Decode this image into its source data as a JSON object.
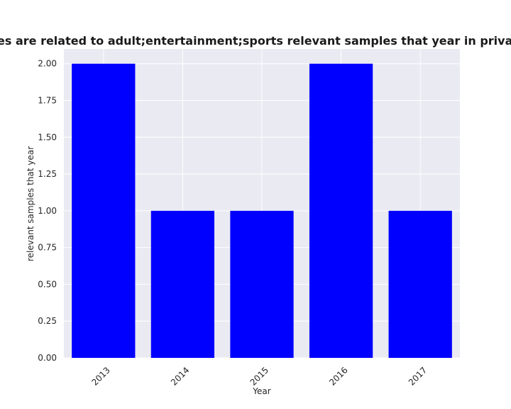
{
  "chart_data": {
    "type": "bar",
    "title": "ategories are related to adult;entertainment;sports relevant samples that year in privacy policie",
    "xlabel": "Year",
    "ylabel": "relevant samples that year",
    "categories": [
      "2013",
      "2014",
      "2015",
      "2016",
      "2017"
    ],
    "values": [
      2,
      1,
      1,
      2,
      1
    ],
    "ylim": [
      0,
      2.1
    ],
    "yticks": [
      "0.00",
      "0.25",
      "0.50",
      "0.75",
      "1.00",
      "1.25",
      "1.50",
      "1.75",
      "2.00"
    ],
    "bar_color": "#0000ff",
    "plot_background": "#eaeaf2",
    "grid": true
  }
}
